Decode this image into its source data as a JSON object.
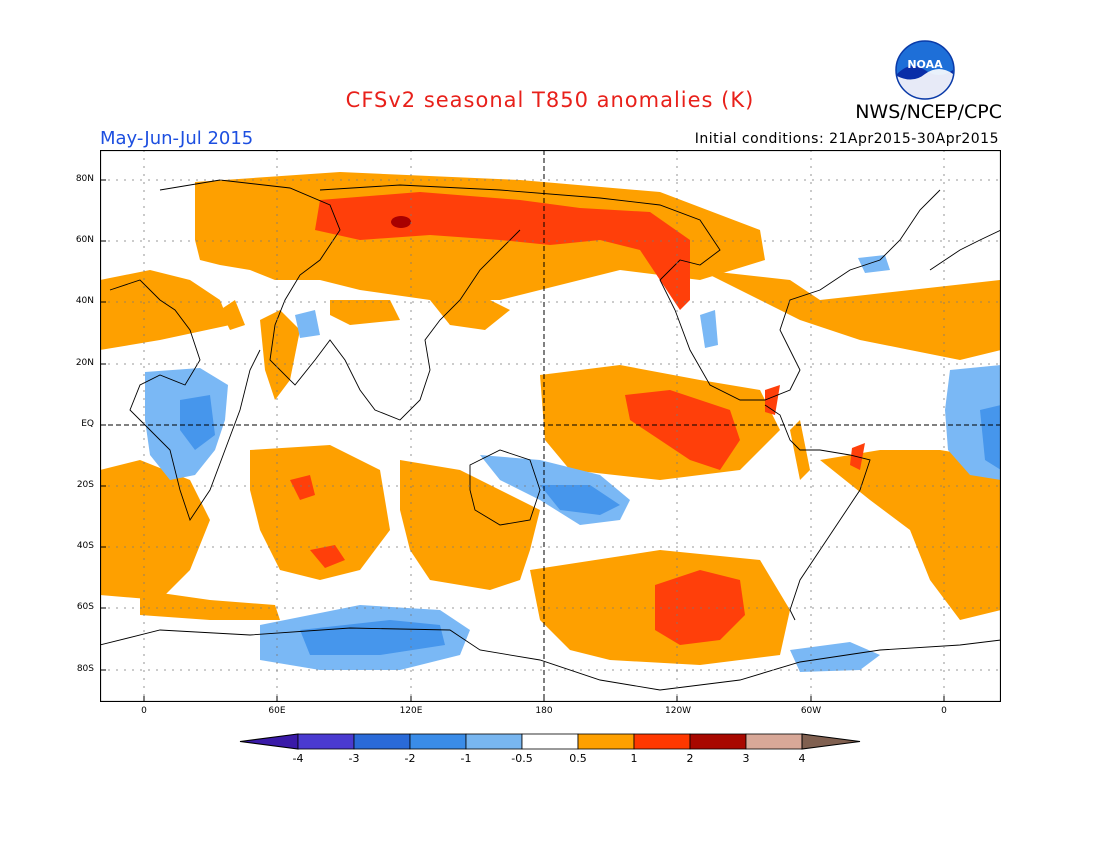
{
  "header": {
    "title": "CFSv2 seasonal T850 anomalies (K)",
    "agency": "NWS/NCEP/CPC",
    "logo_text": "NOAA",
    "period": "May-Jun-Jul 2015",
    "initial_conditions": "Initial conditions: 21Apr2015-30Apr2015"
  },
  "map": {
    "lat_labels": [
      "80N",
      "60N",
      "40N",
      "20N",
      "EQ",
      "20S",
      "40S",
      "60S",
      "80S"
    ],
    "lon_labels": [
      "0",
      "60E",
      "120E",
      "180",
      "120W",
      "60W",
      "0"
    ]
  },
  "legend": {
    "tick_labels": [
      "-4",
      "-3",
      "-2",
      "-1",
      "-0.5",
      "0.5",
      "1",
      "2",
      "3",
      "4"
    ],
    "colors": [
      "#3a1aa8",
      "#4a3ad0",
      "#2a6ad8",
      "#3a8ce8",
      "#78b6f0",
      "#ffffff",
      "#fea000",
      "#ff3800",
      "#a80800",
      "#d8a898",
      "#806050"
    ]
  },
  "colors": {
    "title": "#e8201a",
    "period": "#1d4fe0",
    "orange": "#fea000",
    "red": "#ff3f0a",
    "darkred": "#a80000",
    "blue1": "#7ab8f5",
    "blue2": "#4696ec"
  }
}
